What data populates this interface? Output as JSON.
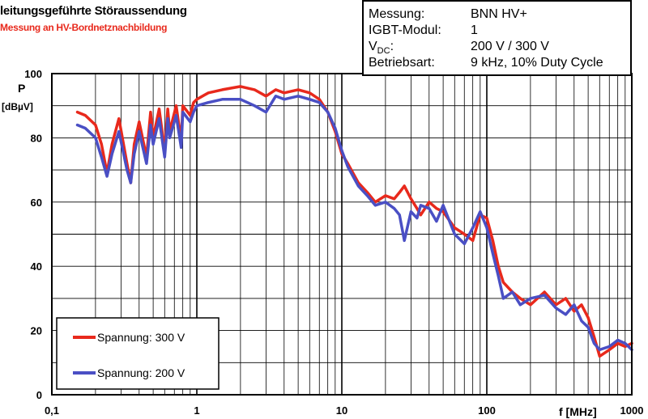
{
  "chart_data": {
    "type": "line",
    "title": "leitungsgeführte Störaussendung",
    "subtitle": "Messung an HV-Bordnetznachbildung",
    "xscale": "log",
    "xlim": [
      0.1,
      1000
    ],
    "ylim": [
      0,
      100
    ],
    "xticks": [
      "0,1",
      "1",
      "10",
      "100",
      "1000"
    ],
    "yticks": [
      "0",
      "20",
      "40",
      "60",
      "80",
      "100"
    ],
    "xlabel": "f [MHz]",
    "ylabel_main": "P",
    "ylabel_unit": "[dBµV]",
    "grid": true,
    "legend_position": "bottom-left",
    "series": [
      {
        "name": "Spannung: 300 V",
        "color": "#e8291c",
        "x": [
          0.15,
          0.17,
          0.2,
          0.22,
          0.24,
          0.26,
          0.29,
          0.33,
          0.35,
          0.37,
          0.4,
          0.45,
          0.48,
          0.5,
          0.55,
          0.6,
          0.63,
          0.65,
          0.72,
          0.78,
          0.8,
          0.9,
          0.95,
          1.0,
          1.2,
          1.5,
          2.0,
          2.5,
          3.0,
          3.5,
          4.0,
          5.0,
          6.0,
          7.0,
          8.0,
          9.0,
          10,
          11,
          13,
          15,
          17,
          20,
          23,
          25,
          27,
          30,
          33,
          35,
          40,
          45,
          50,
          60,
          70,
          80,
          90,
          100,
          110,
          120,
          130,
          150,
          170,
          200,
          250,
          300,
          350,
          400,
          450,
          500,
          550,
          600,
          700,
          800,
          900,
          1000
        ],
        "y": [
          88,
          87,
          84,
          78,
          69,
          78,
          86,
          72,
          66,
          78,
          85,
          74,
          88,
          80,
          89,
          76,
          89,
          82,
          90,
          79,
          90,
          87,
          91,
          92,
          94,
          95,
          96,
          95,
          93,
          95,
          94,
          95,
          94,
          92,
          88,
          82,
          75,
          72,
          66,
          63,
          60,
          62,
          61,
          63,
          65,
          61,
          58,
          56,
          60,
          58,
          57,
          52,
          50,
          48,
          56,
          55,
          48,
          40,
          35,
          32,
          30,
          28,
          32,
          28,
          30,
          26,
          28,
          24,
          18,
          12,
          14,
          16,
          15,
          16
        ]
      },
      {
        "name": "Spannung: 200 V",
        "color": "#4a4fc4",
        "x": [
          0.15,
          0.17,
          0.2,
          0.22,
          0.24,
          0.26,
          0.29,
          0.33,
          0.35,
          0.37,
          0.4,
          0.45,
          0.48,
          0.5,
          0.55,
          0.6,
          0.63,
          0.65,
          0.72,
          0.78,
          0.8,
          0.9,
          0.95,
          1.0,
          1.2,
          1.5,
          2.0,
          2.5,
          3.0,
          3.5,
          4.0,
          5.0,
          6.0,
          7.0,
          8.0,
          9.0,
          10,
          11,
          13,
          15,
          17,
          20,
          23,
          25,
          27,
          30,
          33,
          35,
          40,
          45,
          50,
          60,
          70,
          80,
          90,
          100,
          110,
          120,
          130,
          150,
          170,
          200,
          250,
          300,
          350,
          400,
          450,
          500,
          550,
          600,
          700,
          800,
          900,
          1000
        ],
        "y": [
          84,
          83,
          80,
          74,
          68,
          75,
          82,
          70,
          66,
          75,
          82,
          72,
          84,
          78,
          86,
          74,
          86,
          80,
          87,
          77,
          88,
          85,
          88,
          90,
          91,
          92,
          92,
          90,
          88,
          93,
          92,
          93,
          92,
          91,
          88,
          83,
          76,
          71,
          65,
          62,
          59,
          60,
          58,
          56,
          48,
          57,
          55,
          59,
          58,
          54,
          59,
          50,
          47,
          52,
          57,
          52,
          44,
          37,
          30,
          32,
          28,
          30,
          31,
          27,
          25,
          28,
          23,
          21,
          16,
          14,
          15,
          17,
          16,
          14
        ]
      }
    ]
  },
  "info": {
    "rows": [
      {
        "label": "Messung:",
        "value": "BNN HV+"
      },
      {
        "label": "IGBT-Modul:",
        "value": "1"
      },
      {
        "label_main": "V",
        "label_sub": "DC",
        "label_tail": ":",
        "value": "200 V / 300 V"
      },
      {
        "label": "Betriebsart:",
        "value": "9 kHz, 10% Duty Cycle"
      }
    ]
  }
}
